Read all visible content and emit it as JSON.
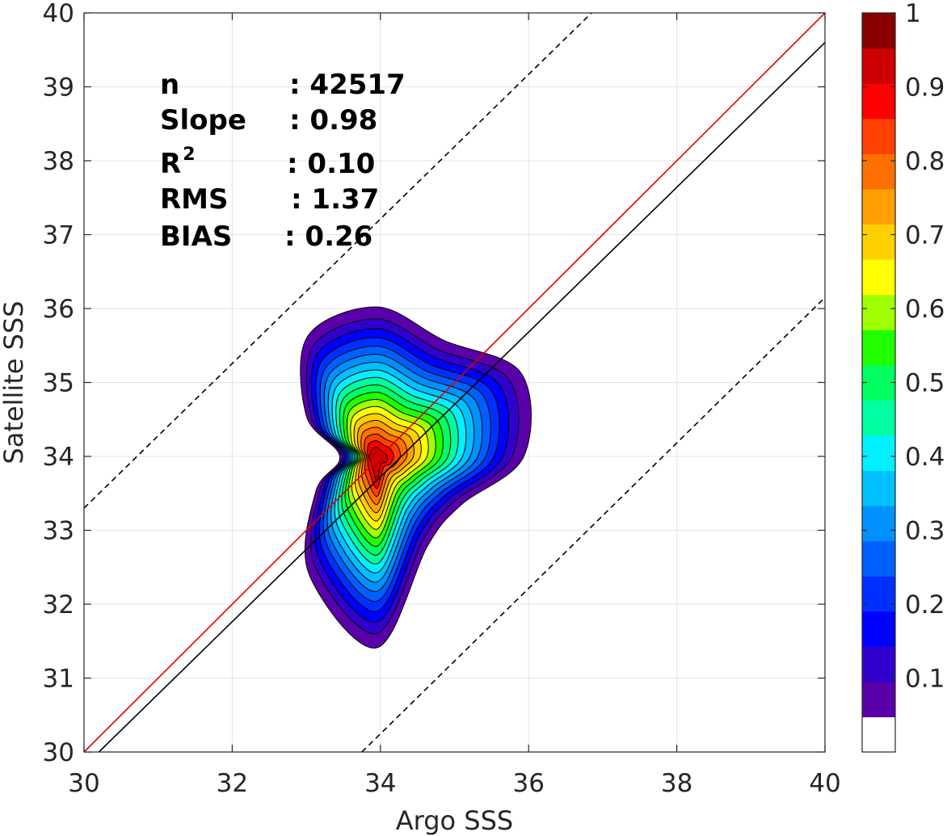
{
  "chart_data": {
    "type": "contour",
    "xlabel": "Argo SSS",
    "ylabel": "Satellite SSS",
    "xlim": [
      30,
      40
    ],
    "ylim": [
      30,
      40
    ],
    "xticks": [
      "30",
      "32",
      "34",
      "36",
      "38",
      "40"
    ],
    "yticks": [
      "30",
      "31",
      "32",
      "33",
      "34",
      "35",
      "36",
      "37",
      "38",
      "39",
      "40"
    ],
    "grid": true,
    "stats": [
      {
        "label": "n",
        "value": ": 42517"
      },
      {
        "label": "Slope",
        "value": ": 0.98"
      },
      {
        "label": "R",
        "sup": "2",
        "value": ": 0.10"
      },
      {
        "label": "RMS",
        "value": ": 1.37"
      },
      {
        "label": "BIAS",
        "value": ": 0.26"
      }
    ],
    "lines": {
      "one_to_one": {
        "color": "#e00000",
        "from": [
          30,
          30
        ],
        "to": [
          40,
          40
        ]
      },
      "regression": {
        "color": "#000000",
        "slope": 0.98,
        "from": [
          30.2,
          30
        ],
        "to": [
          40,
          39.6
        ]
      },
      "upper_bound": {
        "color": "#000000",
        "style": "dashed",
        "from": [
          30,
          33.3
        ],
        "to": [
          36.85,
          40
        ]
      },
      "lower_bound": {
        "color": "#000000",
        "style": "dashed",
        "from": [
          33.75,
          30
        ],
        "to": [
          40,
          36.15
        ]
      }
    },
    "density_peak": {
      "x": 33.95,
      "y": 34.0
    },
    "contour_levels": [
      0.05,
      0.1,
      0.15,
      0.2,
      0.25,
      0.3,
      0.35,
      0.4,
      0.45,
      0.5,
      0.55,
      0.6,
      0.65,
      0.7,
      0.75,
      0.8,
      0.85,
      0.9,
      0.95
    ],
    "colorbar": {
      "range": [
        0,
        1
      ],
      "ticks": [
        "0.1",
        "0.2",
        "0.3",
        "0.4",
        "0.5",
        "0.6",
        "0.7",
        "0.8",
        "0.9",
        "1"
      ],
      "colors": [
        "#ffffff",
        "#5a00aa",
        "#3000cc",
        "#0000ff",
        "#0030ff",
        "#0060ff",
        "#0090ff",
        "#00c0ff",
        "#00f0ff",
        "#00ffa0",
        "#00ff60",
        "#20ff00",
        "#a0ff00",
        "#ffff00",
        "#ffd000",
        "#ffa000",
        "#ff7000",
        "#ff4000",
        "#ff0000",
        "#cc0000",
        "#880000"
      ]
    }
  }
}
